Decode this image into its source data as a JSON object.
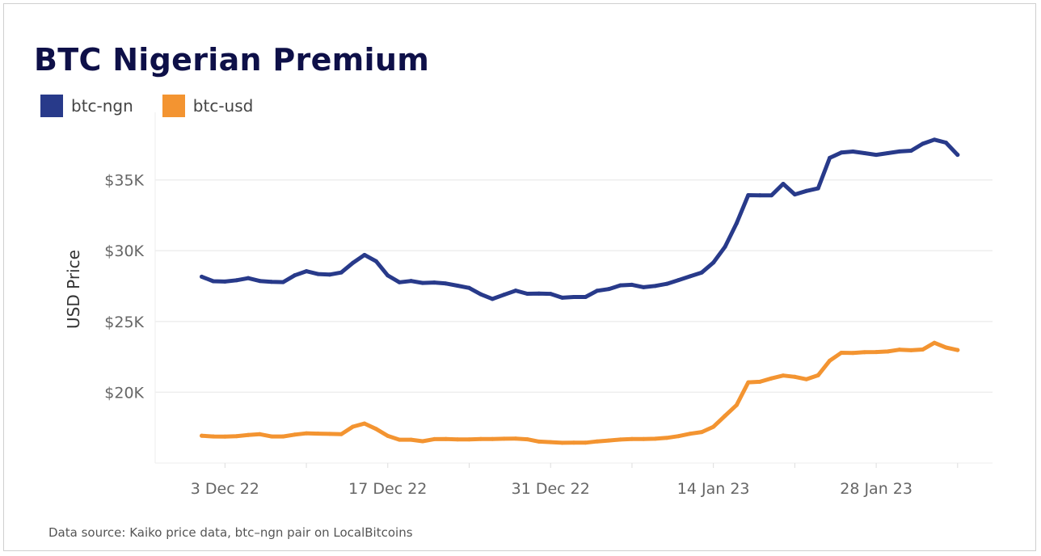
{
  "chart_data": {
    "type": "line",
    "title": "BTC Nigerian Premium",
    "xlabel": "",
    "ylabel": "USD Price",
    "ylim": [
      15000,
      39200
    ],
    "xlim": [
      "2022-11-27",
      "2023-02-07"
    ],
    "grid": true,
    "legend_placement": "top-left",
    "y_ticks": [
      {
        "value": 20000,
        "label": "$20K"
      },
      {
        "value": 25000,
        "label": "$25K"
      },
      {
        "value": 30000,
        "label": "$30K"
      },
      {
        "value": 35000,
        "label": "$35K"
      }
    ],
    "x_ticks": [
      {
        "date": "2022-12-03",
        "label": "3 Dec 22"
      },
      {
        "date": "2022-12-17",
        "label": "17 Dec 22"
      },
      {
        "date": "2022-12-31",
        "label": "31 Dec 22"
      },
      {
        "date": "2023-01-14",
        "label": "14 Jan 23"
      },
      {
        "date": "2023-01-28",
        "label": "28 Jan 23"
      }
    ],
    "x_start": "2022-12-01",
    "x_step_days": 1,
    "series": [
      {
        "name": "btc-ngn",
        "color": "#283a8a",
        "values": [
          28160,
          27840,
          27820,
          27910,
          28060,
          27860,
          27800,
          27780,
          28260,
          28550,
          28350,
          28310,
          28460,
          29140,
          29700,
          29250,
          28250,
          27770,
          27860,
          27720,
          27750,
          27680,
          27530,
          27370,
          26920,
          26590,
          26890,
          27180,
          26960,
          26970,
          26950,
          26680,
          26730,
          26730,
          27170,
          27290,
          27550,
          27590,
          27420,
          27510,
          27660,
          27920,
          28190,
          28460,
          29160,
          30280,
          31940,
          33920,
          33910,
          33910,
          34720,
          33970,
          34220,
          34400,
          36550,
          36930,
          37000,
          36890,
          36770,
          36890,
          37010,
          37060,
          37550,
          37840,
          37630,
          36770
        ]
      },
      {
        "name": "btc-usd",
        "color": "#f39431",
        "values": [
          16930,
          16880,
          16870,
          16900,
          16980,
          17040,
          16880,
          16880,
          17010,
          17100,
          17080,
          17060,
          17040,
          17570,
          17790,
          17410,
          16920,
          16650,
          16650,
          16540,
          16690,
          16700,
          16670,
          16670,
          16700,
          16700,
          16720,
          16730,
          16680,
          16520,
          16480,
          16430,
          16440,
          16440,
          16530,
          16590,
          16660,
          16700,
          16700,
          16720,
          16780,
          16900,
          17070,
          17190,
          17560,
          18340,
          19100,
          20700,
          20740,
          20980,
          21180,
          21090,
          20920,
          21200,
          22230,
          22790,
          22780,
          22830,
          22840,
          22880,
          23010,
          22970,
          23020,
          23490,
          23160,
          22980
        ]
      }
    ]
  },
  "footer": "Data source: Kaiko price data, btc–ngn pair on LocalBitcoins"
}
